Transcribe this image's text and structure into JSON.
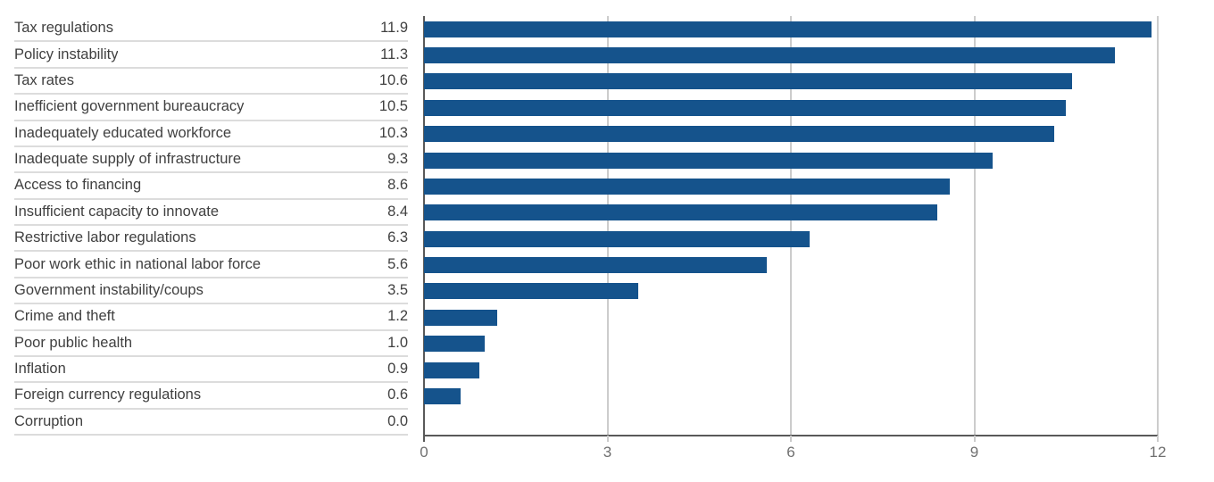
{
  "chart_data": {
    "type": "bar",
    "orientation": "horizontal",
    "title": "",
    "xlabel": "",
    "ylabel": "",
    "xlim": [
      0,
      12
    ],
    "x_ticks": [
      "0",
      "3",
      "6",
      "9",
      "12"
    ],
    "grid": true,
    "legend": false,
    "bar_color": "#15538c",
    "axis_color": "#595959",
    "gridline_color": "#cccccc",
    "separator_color": "#dcdcdc",
    "label_text_color": "#404040",
    "tick_text_color": "#6f6f6f",
    "categories": [
      "Tax regulations",
      "Policy instability",
      "Tax rates",
      "Inefficient government bureaucracy",
      "Inadequately educated workforce",
      "Inadequate supply of infrastructure",
      "Access to financing",
      "Insufficient capacity to innovate",
      "Restrictive labor regulations",
      "Poor work ethic in national labor force",
      "Government instability/coups",
      "Crime and theft",
      "Poor public health",
      "Inflation",
      "Foreign currency regulations",
      "Corruption"
    ],
    "values": [
      11.9,
      11.3,
      10.6,
      10.5,
      10.3,
      9.3,
      8.6,
      8.4,
      6.3,
      5.6,
      3.5,
      1.2,
      1.0,
      0.9,
      0.6,
      0.0
    ],
    "value_labels": [
      "11.9",
      "11.3",
      "10.6",
      "10.5",
      "10.3",
      "9.3",
      "8.6",
      "8.4",
      "6.3",
      "5.6",
      "3.5",
      "1.2",
      "1.0",
      "0.9",
      "0.6",
      "0.0"
    ]
  }
}
